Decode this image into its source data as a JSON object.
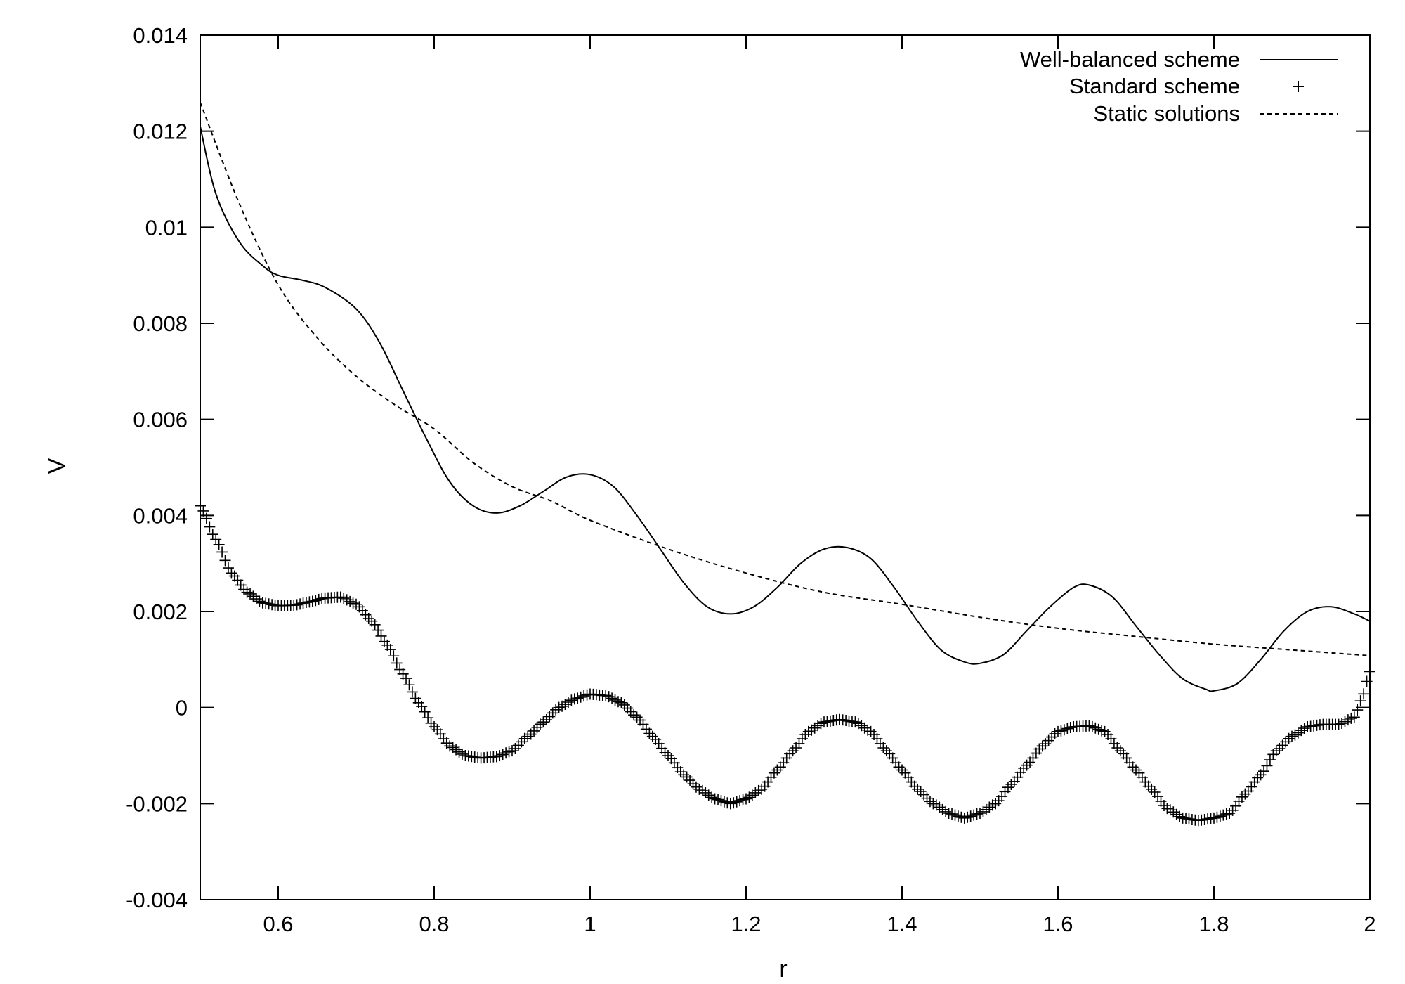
{
  "chart_data": {
    "type": "line",
    "title": "",
    "xlabel": "r",
    "ylabel": "V",
    "xlim": [
      0.5,
      2
    ],
    "ylim": [
      -0.004,
      0.014
    ],
    "x_ticks": [
      {
        "value": 0.6,
        "label": "0.6"
      },
      {
        "value": 0.8,
        "label": "0.8"
      },
      {
        "value": 1.0,
        "label": "1"
      },
      {
        "value": 1.2,
        "label": "1.2"
      },
      {
        "value": 1.4,
        "label": "1.4"
      },
      {
        "value": 1.6,
        "label": "1.6"
      },
      {
        "value": 1.8,
        "label": "1.8"
      },
      {
        "value": 2.0,
        "label": "2"
      }
    ],
    "y_ticks": [
      {
        "value": -0.004,
        "label": "-0.004"
      },
      {
        "value": -0.002,
        "label": "-0.002"
      },
      {
        "value": 0,
        "label": "0"
      },
      {
        "value": 0.002,
        "label": "0.002"
      },
      {
        "value": 0.004,
        "label": "0.004"
      },
      {
        "value": 0.006,
        "label": "0.006"
      },
      {
        "value": 0.008,
        "label": "0.008"
      },
      {
        "value": 0.01,
        "label": "0.01"
      },
      {
        "value": 0.012,
        "label": "0.012"
      },
      {
        "value": 0.014,
        "label": "0.014"
      }
    ],
    "grid": false,
    "legend_position": "top-right",
    "series": [
      {
        "name": "Well-balanced scheme",
        "style": "solid line",
        "color": "#000000",
        "points": [
          [
            0.5,
            0.0121
          ],
          [
            0.52,
            0.0107
          ],
          [
            0.55,
            0.0097
          ],
          [
            0.58,
            0.0092
          ],
          [
            0.6,
            0.009
          ],
          [
            0.63,
            0.0089
          ],
          [
            0.66,
            0.00875
          ],
          [
            0.7,
            0.0083
          ],
          [
            0.73,
            0.0076
          ],
          [
            0.76,
            0.0066
          ],
          [
            0.79,
            0.0056
          ],
          [
            0.82,
            0.0047
          ],
          [
            0.85,
            0.0042
          ],
          [
            0.88,
            0.00405
          ],
          [
            0.91,
            0.0042
          ],
          [
            0.94,
            0.0045
          ],
          [
            0.97,
            0.0048
          ],
          [
            1.0,
            0.00485
          ],
          [
            1.03,
            0.0046
          ],
          [
            1.06,
            0.004
          ],
          [
            1.09,
            0.0033
          ],
          [
            1.12,
            0.0026
          ],
          [
            1.15,
            0.0021
          ],
          [
            1.18,
            0.00195
          ],
          [
            1.21,
            0.0021
          ],
          [
            1.24,
            0.0025
          ],
          [
            1.27,
            0.003
          ],
          [
            1.3,
            0.0033
          ],
          [
            1.33,
            0.00333
          ],
          [
            1.36,
            0.0031
          ],
          [
            1.39,
            0.0025
          ],
          [
            1.42,
            0.0018
          ],
          [
            1.45,
            0.0012
          ],
          [
            1.48,
            0.00095
          ],
          [
            1.5,
            0.00092
          ],
          [
            1.53,
            0.0011
          ],
          [
            1.56,
            0.0016
          ],
          [
            1.59,
            0.0021
          ],
          [
            1.62,
            0.0025
          ],
          [
            1.64,
            0.00255
          ],
          [
            1.67,
            0.0023
          ],
          [
            1.7,
            0.0017
          ],
          [
            1.73,
            0.0011
          ],
          [
            1.76,
            0.0006
          ],
          [
            1.79,
            0.00038
          ],
          [
            1.8,
            0.00035
          ],
          [
            1.83,
            0.0005
          ],
          [
            1.86,
            0.001
          ],
          [
            1.89,
            0.0016
          ],
          [
            1.92,
            0.002
          ],
          [
            1.95,
            0.0021
          ],
          [
            1.98,
            0.00195
          ],
          [
            2.0,
            0.0018
          ]
        ]
      },
      {
        "name": "Standard scheme",
        "style": "plus markers",
        "color": "#000000",
        "points": [
          [
            0.5,
            0.0042
          ],
          [
            0.52,
            0.0035
          ],
          [
            0.54,
            0.0028
          ],
          [
            0.56,
            0.0024
          ],
          [
            0.58,
            0.00218
          ],
          [
            0.6,
            0.00212
          ],
          [
            0.62,
            0.00213
          ],
          [
            0.64,
            0.0022
          ],
          [
            0.66,
            0.00228
          ],
          [
            0.68,
            0.0023
          ],
          [
            0.7,
            0.00215
          ],
          [
            0.72,
            0.0018
          ],
          [
            0.74,
            0.0013
          ],
          [
            0.76,
            0.0007
          ],
          [
            0.78,
            0.0001
          ],
          [
            0.8,
            -0.0004
          ],
          [
            0.82,
            -0.0008
          ],
          [
            0.84,
            -0.001
          ],
          [
            0.86,
            -0.00105
          ],
          [
            0.88,
            -0.00102
          ],
          [
            0.9,
            -0.0009
          ],
          [
            0.92,
            -0.0006
          ],
          [
            0.94,
            -0.0003
          ],
          [
            0.96,
            0.0
          ],
          [
            0.98,
            0.00018
          ],
          [
            1.0,
            0.00028
          ],
          [
            1.02,
            0.00025
          ],
          [
            1.04,
            0.0001
          ],
          [
            1.06,
            -0.0002
          ],
          [
            1.08,
            -0.0006
          ],
          [
            1.1,
            -0.001
          ],
          [
            1.12,
            -0.0014
          ],
          [
            1.14,
            -0.0017
          ],
          [
            1.16,
            -0.0019
          ],
          [
            1.18,
            -0.002
          ],
          [
            1.2,
            -0.0019
          ],
          [
            1.22,
            -0.0017
          ],
          [
            1.24,
            -0.0013
          ],
          [
            1.26,
            -0.0009
          ],
          [
            1.28,
            -0.0005
          ],
          [
            1.3,
            -0.0003
          ],
          [
            1.32,
            -0.00025
          ],
          [
            1.34,
            -0.0003
          ],
          [
            1.36,
            -0.0005
          ],
          [
            1.38,
            -0.0009
          ],
          [
            1.4,
            -0.0013
          ],
          [
            1.42,
            -0.0017
          ],
          [
            1.44,
            -0.002
          ],
          [
            1.46,
            -0.0022
          ],
          [
            1.48,
            -0.0023
          ],
          [
            1.5,
            -0.0022
          ],
          [
            1.52,
            -0.002
          ],
          [
            1.54,
            -0.0016
          ],
          [
            1.56,
            -0.0012
          ],
          [
            1.58,
            -0.0008
          ],
          [
            1.6,
            -0.0005
          ],
          [
            1.62,
            -0.0004
          ],
          [
            1.64,
            -0.00038
          ],
          [
            1.66,
            -0.0005
          ],
          [
            1.68,
            -0.0009
          ],
          [
            1.7,
            -0.0013
          ],
          [
            1.72,
            -0.0017
          ],
          [
            1.74,
            -0.0021
          ],
          [
            1.76,
            -0.0023
          ],
          [
            1.78,
            -0.00235
          ],
          [
            1.8,
            -0.0023
          ],
          [
            1.82,
            -0.0022
          ],
          [
            1.84,
            -0.0018
          ],
          [
            1.86,
            -0.0014
          ],
          [
            1.88,
            -0.0009
          ],
          [
            1.9,
            -0.0006
          ],
          [
            1.92,
            -0.0004
          ],
          [
            1.94,
            -0.00035
          ],
          [
            1.96,
            -0.00035
          ],
          [
            1.98,
            -0.0002
          ],
          [
            1.99,
            0.0002
          ],
          [
            2.0,
            0.00075
          ]
        ]
      },
      {
        "name": "Static solutions",
        "style": "dashed line",
        "color": "#000000",
        "formula_note": "",
        "points": [
          [
            0.5,
            0.0126
          ],
          [
            0.55,
            0.0105
          ],
          [
            0.6,
            0.0088
          ],
          [
            0.65,
            0.0077
          ],
          [
            0.7,
            0.0069
          ],
          [
            0.75,
            0.0063
          ],
          [
            0.8,
            0.0058
          ],
          [
            0.85,
            0.0051
          ],
          [
            0.9,
            0.0046
          ],
          [
            0.95,
            0.0043
          ],
          [
            1.0,
            0.0039
          ],
          [
            1.1,
            0.0033
          ],
          [
            1.2,
            0.0028
          ],
          [
            1.3,
            0.0024
          ],
          [
            1.4,
            0.00215
          ],
          [
            1.5,
            0.00188
          ],
          [
            1.6,
            0.00165
          ],
          [
            1.7,
            0.00148
          ],
          [
            1.8,
            0.00132
          ],
          [
            1.9,
            0.0012
          ],
          [
            2.0,
            0.00108
          ]
        ]
      }
    ]
  }
}
